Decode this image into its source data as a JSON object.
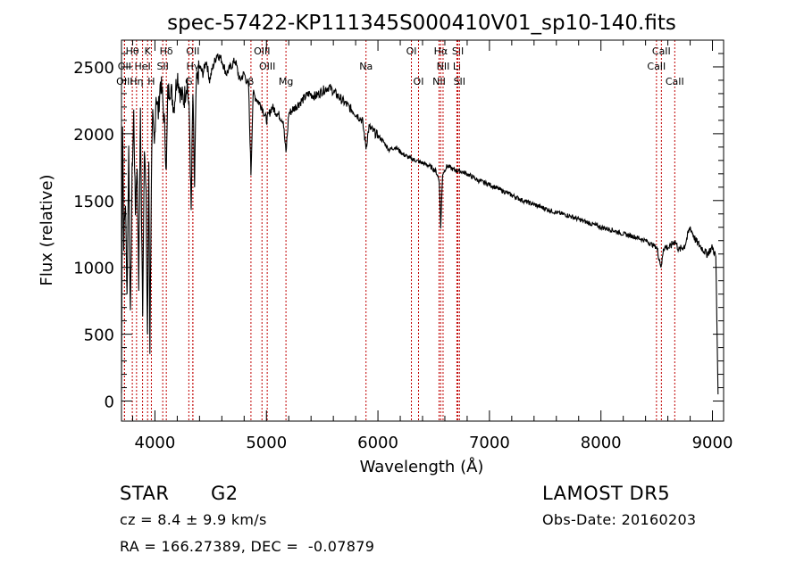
{
  "chart_data": {
    "type": "line",
    "title": "spec-57422-KP111345S000410V01_sp10-140.fits",
    "xlabel": "Wavelength (Å)",
    "ylabel": "Flux (relative)",
    "xlim": [
      3700,
      9100
    ],
    "ylim": [
      -150,
      2700
    ],
    "x_ticks": [
      "4000",
      "5000",
      "6000",
      "7000",
      "8000",
      "9000"
    ],
    "y_ticks": [
      "0",
      "500",
      "1000",
      "1500",
      "2000",
      "2500"
    ],
    "x_tick_values": [
      4000,
      5000,
      6000,
      7000,
      8000,
      9000
    ],
    "y_tick_values": [
      0,
      500,
      1000,
      1500,
      2000,
      2500
    ],
    "grid": false,
    "line_color": "#000000",
    "marker_color": "#c00000",
    "series": [
      {
        "x": [
          3700,
          3710,
          3720,
          3735,
          3750,
          3765,
          3780,
          3795,
          3810,
          3825,
          3840,
          3855,
          3870,
          3880,
          3890,
          3905,
          3920,
          3933,
          3945,
          3955,
          3968,
          3980,
          3995,
          4010,
          4030,
          4050,
          4070,
          4090,
          4102,
          4115,
          4140,
          4170,
          4200,
          4230,
          4260,
          4290,
          4310,
          4325,
          4340,
          4355,
          4370,
          4400,
          4430,
          4460,
          4490,
          4520,
          4560,
          4600,
          4640,
          4680,
          4720,
          4760,
          4800,
          4840,
          4861,
          4880,
          4920,
          4960,
          5000,
          5050,
          5100,
          5150,
          5175,
          5200,
          5260,
          5320,
          5380,
          5440,
          5500,
          5560,
          5620,
          5680,
          5740,
          5800,
          5860,
          5893,
          5920,
          5980,
          6040,
          6100,
          6160,
          6220,
          6280,
          6340,
          6400,
          6460,
          6520,
          6550,
          6563,
          6580,
          6620,
          6680,
          6740,
          6800,
          6900,
          7000,
          7100,
          7200,
          7300,
          7400,
          7500,
          7600,
          7700,
          7800,
          7900,
          8000,
          8100,
          8200,
          8300,
          8400,
          8500,
          8542,
          8560,
          8620,
          8662,
          8700,
          8750,
          8800,
          8850,
          8900,
          8950,
          9000,
          9030,
          9050
        ],
        "y": [
          60,
          2100,
          1200,
          1500,
          800,
          1900,
          600,
          1700,
          2150,
          1400,
          1800,
          900,
          2200,
          1300,
          700,
          1950,
          1500,
          500,
          1800,
          400,
          1700,
          2100,
          1900,
          2300,
          2150,
          2400,
          2250,
          2000,
          1700,
          2300,
          2350,
          2200,
          2450,
          2300,
          2250,
          2400,
          2100,
          1400,
          2300,
          1600,
          2350,
          2500,
          2450,
          2550,
          2400,
          2500,
          2600,
          2550,
          2450,
          2500,
          2550,
          2400,
          2450,
          2350,
          1700,
          2300,
          2250,
          2200,
          2100,
          2200,
          2150,
          2100,
          1850,
          2150,
          2200,
          2250,
          2300,
          2280,
          2320,
          2350,
          2300,
          2250,
          2200,
          2150,
          2100,
          1900,
          2050,
          2000,
          1950,
          1880,
          1900,
          1850,
          1820,
          1800,
          1780,
          1760,
          1720,
          1650,
          1300,
          1700,
          1760,
          1730,
          1720,
          1700,
          1650,
          1620,
          1580,
          1540,
          1500,
          1470,
          1440,
          1410,
          1390,
          1360,
          1330,
          1300,
          1280,
          1250,
          1230,
          1200,
          1150,
          1000,
          1150,
          1150,
          1200,
          1130,
          1160,
          1300,
          1200,
          1150,
          1100,
          1150,
          1080,
          50
        ]
      }
    ],
    "line_markers": [
      {
        "label": "Hθ",
        "wavelength": 3797,
        "row": 1
      },
      {
        "label": "K",
        "wavelength": 3934,
        "row": 1
      },
      {
        "label": "Hδ",
        "wavelength": 4102,
        "row": 1
      },
      {
        "label": "OII",
        "wavelength": 4340,
        "row": 1
      },
      {
        "label": "OIII",
        "wavelength": 4960,
        "row": 1
      },
      {
        "label": "Na",
        "wavelength": 5893,
        "row": 2
      },
      {
        "label": "OI",
        "wavelength": 6300,
        "row": 1
      },
      {
        "label": "Hα",
        "wavelength": 6563,
        "row": 1
      },
      {
        "label": "SII",
        "wavelength": 6717,
        "row": 1
      },
      {
        "label": "CaII",
        "wavelength": 8542,
        "row": 1
      },
      {
        "label": "OII",
        "wavelength": 3727,
        "row": 2
      },
      {
        "label": "HeI",
        "wavelength": 3889,
        "row": 2
      },
      {
        "label": "SII",
        "wavelength": 4070,
        "row": 2
      },
      {
        "label": "Hγ",
        "wavelength": 4340,
        "row": 2
      },
      {
        "label": "OIII",
        "wavelength": 5007,
        "row": 2
      },
      {
        "label": "NII",
        "wavelength": 6584,
        "row": 2
      },
      {
        "label": "Li",
        "wavelength": 6708,
        "row": 2
      },
      {
        "label": "CaII",
        "wavelength": 8498,
        "row": 2
      },
      {
        "label": "OIII",
        "wavelength": 3727,
        "row": 3
      },
      {
        "label": "Hη",
        "wavelength": 3835,
        "row": 3
      },
      {
        "label": "H",
        "wavelength": 3968,
        "row": 3
      },
      {
        "label": "G",
        "wavelength": 4304,
        "row": 3
      },
      {
        "label": "β",
        "wavelength": 4861,
        "row": 3
      },
      {
        "label": "Mg",
        "wavelength": 5175,
        "row": 3
      },
      {
        "label": "OI",
        "wavelength": 6364,
        "row": 3
      },
      {
        "label": "NII",
        "wavelength": 6548,
        "row": 3
      },
      {
        "label": "SII",
        "wavelength": 6731,
        "row": 3
      },
      {
        "label": "CaII",
        "wavelength": 8662,
        "row": 3
      }
    ]
  },
  "info": {
    "object_class": "STAR",
    "subclass": "G2",
    "redshift": "cz = 8.4 ± 9.9 km/s",
    "coords": "RA = 166.27389, DEC =  -0.07879",
    "survey": "LAMOST DR5",
    "obs_date": "Obs-Date: 20160203"
  }
}
